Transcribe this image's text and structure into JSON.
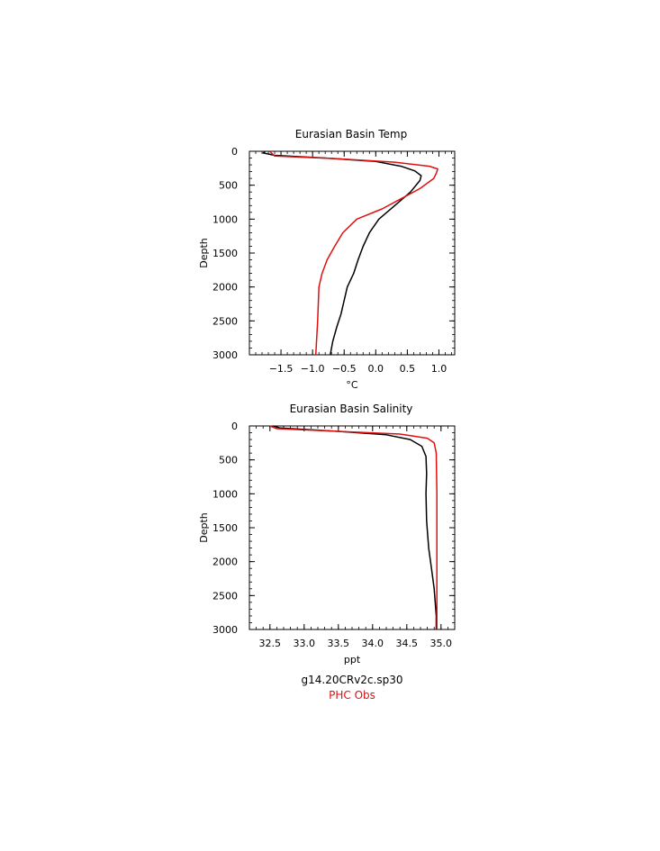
{
  "chart_data": [
    {
      "type": "line",
      "title": "Eurasian Basin Temp",
      "xlabel": "°C",
      "ylabel": "Depth",
      "xlim": [
        -2.0,
        1.25
      ],
      "ylim": [
        3000,
        0
      ],
      "x_ticks": [
        -1.5,
        -1.0,
        -0.5,
        0.0,
        0.5,
        1.0
      ],
      "x_tick_labels": [
        "−1.5",
        "−1.0",
        "−0.5",
        "0.0",
        "0.5",
        "1.0"
      ],
      "y_ticks": [
        0,
        500,
        1000,
        1500,
        2000,
        2500,
        3000
      ],
      "y_tick_labels": [
        "0",
        "500",
        "1000",
        "1500",
        "2000",
        "2500",
        "3000"
      ],
      "series": [
        {
          "name": "g14.20CRv2c.sp30",
          "color": "#000000",
          "points": [
            [
              -1.75,
              0
            ],
            [
              -1.78,
              25
            ],
            [
              -1.6,
              60
            ],
            [
              -0.8,
              100
            ],
            [
              0.0,
              150
            ],
            [
              0.4,
              220
            ],
            [
              0.62,
              290
            ],
            [
              0.72,
              360
            ],
            [
              0.7,
              430
            ],
            [
              0.55,
              600
            ],
            [
              0.3,
              800
            ],
            [
              0.05,
              1000
            ],
            [
              -0.1,
              1200
            ],
            [
              -0.2,
              1400
            ],
            [
              -0.28,
              1600
            ],
            [
              -0.35,
              1800
            ],
            [
              -0.45,
              2000
            ],
            [
              -0.5,
              2200
            ],
            [
              -0.55,
              2400
            ],
            [
              -0.62,
              2600
            ],
            [
              -0.68,
              2800
            ],
            [
              -0.72,
              3000
            ]
          ]
        },
        {
          "name": "PHC Obs",
          "color": "#e01010",
          "points": [
            [
              -1.68,
              0
            ],
            [
              -1.6,
              70
            ],
            [
              -0.6,
              110
            ],
            [
              0.3,
              160
            ],
            [
              0.85,
              220
            ],
            [
              0.98,
              260
            ],
            [
              0.96,
              320
            ],
            [
              0.92,
              400
            ],
            [
              0.7,
              550
            ],
            [
              0.4,
              700
            ],
            [
              0.1,
              850
            ],
            [
              -0.3,
              1000
            ],
            [
              -0.52,
              1200
            ],
            [
              -0.65,
              1400
            ],
            [
              -0.77,
              1600
            ],
            [
              -0.85,
              1800
            ],
            [
              -0.9,
              2000
            ],
            [
              -0.92,
              2500
            ],
            [
              -0.95,
              3000
            ]
          ]
        }
      ]
    },
    {
      "type": "line",
      "title": "Eurasian Basin Salinity",
      "xlabel": "ppt",
      "ylabel": "Depth",
      "xlim": [
        32.2,
        35.2
      ],
      "ylim": [
        3000,
        0
      ],
      "x_ticks": [
        32.5,
        33.0,
        33.5,
        34.0,
        34.5,
        35.0
      ],
      "x_tick_labels": [
        "32.5",
        "33.0",
        "33.5",
        "34.0",
        "34.5",
        "35.0"
      ],
      "y_ticks": [
        0,
        500,
        1000,
        1500,
        2000,
        2500,
        3000
      ],
      "y_tick_labels": [
        "0",
        "500",
        "1000",
        "1500",
        "2000",
        "2500",
        "3000"
      ],
      "series": [
        {
          "name": "g14.20CRv2c.sp30",
          "color": "#000000",
          "points": [
            [
              32.55,
              0
            ],
            [
              32.65,
              30
            ],
            [
              33.5,
              80
            ],
            [
              34.2,
              130
            ],
            [
              34.55,
              200
            ],
            [
              34.72,
              300
            ],
            [
              34.78,
              450
            ],
            [
              34.79,
              700
            ],
            [
              34.78,
              1000
            ],
            [
              34.79,
              1400
            ],
            [
              34.82,
              1800
            ],
            [
              34.86,
              2100
            ],
            [
              34.9,
              2400
            ],
            [
              34.93,
              2800
            ],
            [
              34.93,
              3000
            ]
          ]
        },
        {
          "name": "PHC Obs",
          "color": "#e01010",
          "points": [
            [
              32.5,
              0
            ],
            [
              32.6,
              40
            ],
            [
              33.5,
              80
            ],
            [
              34.4,
              120
            ],
            [
              34.8,
              180
            ],
            [
              34.9,
              250
            ],
            [
              34.93,
              400
            ],
            [
              34.94,
              1000
            ],
            [
              34.94,
              2000
            ],
            [
              34.94,
              3000
            ]
          ]
        }
      ]
    }
  ],
  "legend": {
    "items": [
      {
        "label": "g14.20CRv2c.sp30",
        "color": "#000000"
      },
      {
        "label": "PHC Obs",
        "color": "#e01010"
      }
    ]
  }
}
